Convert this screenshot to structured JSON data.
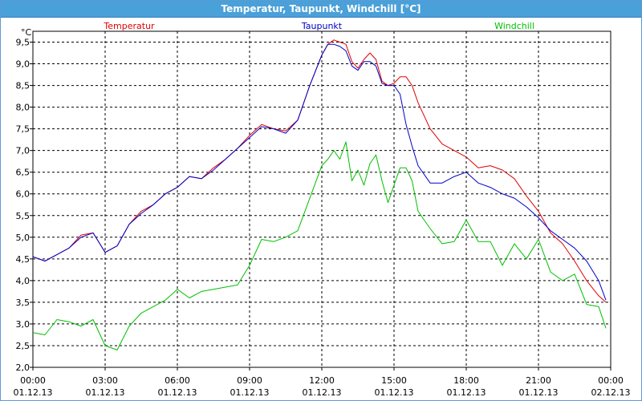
{
  "window": {
    "title": "Temperatur, Taupunkt, Windchill [°C]"
  },
  "chart_data": {
    "type": "line",
    "unit_label": "°C",
    "ylim": [
      2.0,
      9.75
    ],
    "y_ticks": [
      2.0,
      2.5,
      3.0,
      3.5,
      4.0,
      4.5,
      5.0,
      5.5,
      6.0,
      6.5,
      7.0,
      7.5,
      8.0,
      8.5,
      9.0,
      9.5
    ],
    "y_tick_labels": [
      "2,0",
      "2,5",
      "3,0",
      "3,5",
      "4,0",
      "4,5",
      "5,0",
      "5,5",
      "6,0",
      "6,5",
      "7,0",
      "7,5",
      "8,0",
      "8,5",
      "9,0",
      "9,5"
    ],
    "xlim": [
      0,
      24
    ],
    "x_ticks": [
      {
        "time": "00:00",
        "date": "01.12.13"
      },
      {
        "time": "03:00",
        "date": "01.12.13"
      },
      {
        "time": "06:00",
        "date": "01.12.13"
      },
      {
        "time": "09:00",
        "date": "01.12.13"
      },
      {
        "time": "12:00",
        "date": "01.12.13"
      },
      {
        "time": "15:00",
        "date": "01.12.13"
      },
      {
        "time": "18:00",
        "date": "01.12.13"
      },
      {
        "time": "21:00",
        "date": "01.12.13"
      },
      {
        "time": "00:00",
        "date": "02.12.13"
      }
    ],
    "grid": true,
    "x": [
      0,
      0.5,
      1,
      1.5,
      2,
      2.5,
      3,
      3.5,
      4,
      4.5,
      5,
      5.5,
      6,
      6.5,
      7,
      7.5,
      8,
      8.5,
      9,
      9.5,
      10,
      10.5,
      11,
      11.5,
      12,
      12.25,
      12.5,
      12.75,
      13,
      13.25,
      13.5,
      13.75,
      14,
      14.25,
      14.5,
      14.75,
      15,
      15.25,
      15.5,
      15.75,
      16,
      16.5,
      17,
      17.5,
      18,
      18.5,
      19,
      19.5,
      20,
      20.5,
      21,
      21.5,
      22,
      22.5,
      23,
      23.5,
      23.8
    ],
    "series": [
      {
        "name": "Temperatur",
        "color": "#e00000",
        "values": [
          4.55,
          4.45,
          4.6,
          4.75,
          5.05,
          5.1,
          4.65,
          4.8,
          5.3,
          5.6,
          5.75,
          6.0,
          6.15,
          6.4,
          6.35,
          6.6,
          6.8,
          7.05,
          7.35,
          7.6,
          7.5,
          7.45,
          7.7,
          8.5,
          9.2,
          9.45,
          9.55,
          9.5,
          9.45,
          9.05,
          8.9,
          9.1,
          9.25,
          9.1,
          8.6,
          8.5,
          8.55,
          8.7,
          8.7,
          8.5,
          8.1,
          7.5,
          7.15,
          7.0,
          6.85,
          6.6,
          6.65,
          6.55,
          6.35,
          5.95,
          5.6,
          5.1,
          4.85,
          4.45,
          4.0,
          3.65,
          3.5
        ]
      },
      {
        "name": "Taupunkt",
        "color": "#0000c8",
        "values": [
          4.55,
          4.45,
          4.6,
          4.75,
          5.0,
          5.1,
          4.65,
          4.8,
          5.3,
          5.55,
          5.75,
          6.0,
          6.15,
          6.4,
          6.35,
          6.55,
          6.8,
          7.05,
          7.3,
          7.55,
          7.5,
          7.4,
          7.7,
          8.5,
          9.2,
          9.45,
          9.45,
          9.4,
          9.3,
          8.95,
          8.85,
          9.05,
          9.05,
          8.95,
          8.55,
          8.5,
          8.5,
          8.3,
          7.6,
          7.1,
          6.65,
          6.25,
          6.25,
          6.4,
          6.5,
          6.25,
          6.15,
          6.0,
          5.9,
          5.7,
          5.45,
          5.15,
          4.95,
          4.75,
          4.45,
          4.0,
          3.55
        ]
      },
      {
        "name": "Windchill",
        "color": "#00c000",
        "values": [
          2.8,
          2.75,
          3.1,
          3.05,
          2.95,
          3.1,
          2.5,
          2.4,
          2.95,
          3.25,
          3.4,
          3.55,
          3.8,
          3.6,
          3.75,
          3.8,
          3.85,
          3.9,
          4.35,
          4.95,
          4.9,
          5.0,
          5.15,
          5.9,
          6.65,
          6.8,
          7.0,
          6.8,
          7.2,
          6.3,
          6.55,
          6.2,
          6.7,
          6.9,
          6.3,
          5.8,
          6.2,
          6.6,
          6.6,
          6.3,
          5.6,
          5.2,
          4.85,
          4.9,
          5.4,
          4.9,
          4.9,
          4.35,
          4.85,
          4.5,
          4.95,
          4.2,
          4.0,
          4.15,
          3.45,
          3.4,
          2.9
        ]
      }
    ]
  }
}
